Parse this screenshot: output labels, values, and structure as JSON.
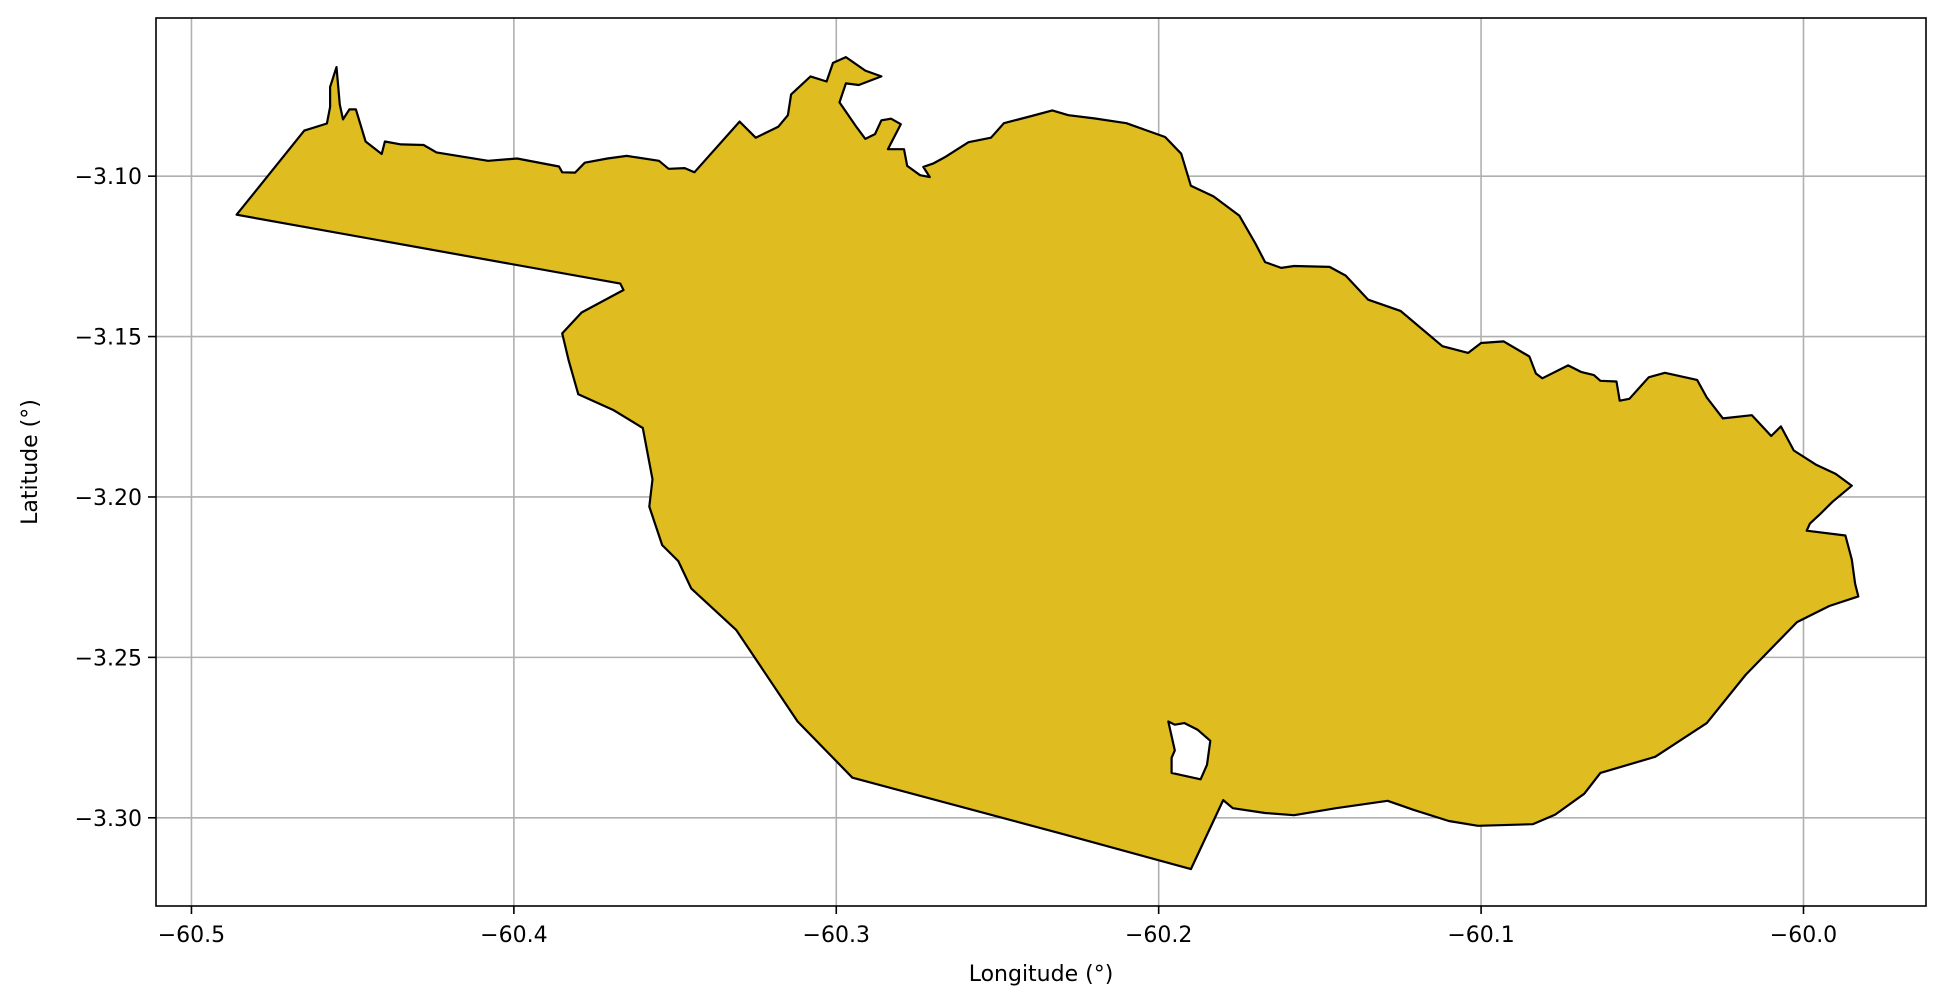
{
  "figure": {
    "xlabel": "Longitude (°)",
    "ylabel": "Latitude (°)"
  },
  "style": {
    "fill_color": "#dfbc20",
    "edge_color": "#000000",
    "grid_color": "#b0b0b0"
  },
  "map": {
    "x_range": [
      -60.511,
      -59.962
    ],
    "y_range": [
      -3.3275,
      -3.0507
    ],
    "grid": true,
    "x_ticks": [
      {
        "value": -60.5,
        "label": "−60.5"
      },
      {
        "value": -60.4,
        "label": "−60.4"
      },
      {
        "value": -60.3,
        "label": "−60.3"
      },
      {
        "value": -60.2,
        "label": "−60.2"
      },
      {
        "value": -60.1,
        "label": "−60.1"
      },
      {
        "value": -60.0,
        "label": "−60.0"
      }
    ],
    "y_ticks": [
      {
        "value": -3.1,
        "label": "−3.10"
      },
      {
        "value": -3.15,
        "label": "−3.15"
      },
      {
        "value": -3.2,
        "label": "−3.20"
      },
      {
        "value": -3.25,
        "label": "−3.25"
      },
      {
        "value": -3.3,
        "label": "−3.30"
      }
    ],
    "outline": [
      [
        -60.486,
        -3.112
      ],
      [
        -60.465,
        -3.0858
      ],
      [
        -60.458,
        -3.0836
      ],
      [
        -60.457,
        -3.0784
      ],
      [
        -60.457,
        -3.0722
      ],
      [
        -60.455,
        -3.066
      ],
      [
        -60.454,
        -3.0777
      ],
      [
        -60.453,
        -3.0823
      ],
      [
        -60.451,
        -3.0792
      ],
      [
        -60.449,
        -3.0792
      ],
      [
        -60.446,
        -3.0892
      ],
      [
        -60.441,
        -3.0931
      ],
      [
        -60.44,
        -3.0892
      ],
      [
        -60.435,
        -3.0901
      ],
      [
        -60.428,
        -3.0903
      ],
      [
        -60.424,
        -3.0926
      ],
      [
        -60.408,
        -3.0952
      ],
      [
        -60.399,
        -3.0945
      ],
      [
        -60.386,
        -3.097
      ],
      [
        -60.385,
        -3.0988
      ],
      [
        -60.381,
        -3.0989
      ],
      [
        -60.378,
        -3.0958
      ],
      [
        -60.371,
        -3.0945
      ],
      [
        -60.365,
        -3.0937
      ],
      [
        -60.355,
        -3.0952
      ],
      [
        -60.352,
        -3.0977
      ],
      [
        -60.347,
        -3.0975
      ],
      [
        -60.344,
        -3.0988
      ],
      [
        -60.33,
        -3.083
      ],
      [
        -60.325,
        -3.088
      ],
      [
        -60.318,
        -3.0846
      ],
      [
        -60.315,
        -3.081
      ],
      [
        -60.314,
        -3.0745
      ],
      [
        -60.308,
        -3.0689
      ],
      [
        -60.303,
        -3.0705
      ],
      [
        -60.301,
        -3.0647
      ],
      [
        -60.297,
        -3.0629
      ],
      [
        -60.291,
        -3.0671
      ],
      [
        -60.286,
        -3.0689
      ],
      [
        -60.293,
        -3.0716
      ],
      [
        -60.297,
        -3.0711
      ],
      [
        -60.299,
        -3.077
      ],
      [
        -60.294,
        -3.0843
      ],
      [
        -60.291,
        -3.0884
      ],
      [
        -60.288,
        -3.0869
      ],
      [
        -60.286,
        -3.0826
      ],
      [
        -60.283,
        -3.0821
      ],
      [
        -60.28,
        -3.0838
      ],
      [
        -60.284,
        -3.0916
      ],
      [
        -60.279,
        -3.0916
      ],
      [
        -60.278,
        -3.0968
      ],
      [
        -60.274,
        -3.0997
      ],
      [
        -60.271,
        -3.1003
      ],
      [
        -60.273,
        -3.0971
      ],
      [
        -60.27,
        -3.0961
      ],
      [
        -60.266,
        -3.0939
      ],
      [
        -60.259,
        -3.0894
      ],
      [
        -60.252,
        -3.088
      ],
      [
        -60.248,
        -3.0835
      ],
      [
        -60.24,
        -3.0814
      ],
      [
        -60.233,
        -3.0795
      ],
      [
        -60.228,
        -3.081
      ],
      [
        -60.22,
        -3.082
      ],
      [
        -60.21,
        -3.0835
      ],
      [
        -60.198,
        -3.0878
      ],
      [
        -60.193,
        -3.093
      ],
      [
        -60.19,
        -3.103
      ],
      [
        -60.183,
        -3.1063
      ],
      [
        -60.175,
        -3.1123
      ],
      [
        -60.17,
        -3.121
      ],
      [
        -60.167,
        -3.1268
      ],
      [
        -60.162,
        -3.1286
      ],
      [
        -60.158,
        -3.128
      ],
      [
        -60.147,
        -3.1283
      ],
      [
        -60.142,
        -3.131
      ],
      [
        -60.135,
        -3.1385
      ],
      [
        -60.125,
        -3.142
      ],
      [
        -60.112,
        -3.153
      ],
      [
        -60.104,
        -3.1551
      ],
      [
        -60.1,
        -3.152
      ],
      [
        -60.093,
        -3.1515
      ],
      [
        -60.085,
        -3.1562
      ],
      [
        -60.083,
        -3.1615
      ],
      [
        -60.081,
        -3.163
      ],
      [
        -60.073,
        -3.159
      ],
      [
        -60.069,
        -3.161
      ],
      [
        -60.065,
        -3.162
      ],
      [
        -60.063,
        -3.1638
      ],
      [
        -60.058,
        -3.164
      ],
      [
        -60.057,
        -3.17
      ],
      [
        -60.054,
        -3.1694
      ],
      [
        -60.048,
        -3.1627
      ],
      [
        -60.043,
        -3.1613
      ],
      [
        -60.033,
        -3.1635
      ],
      [
        -60.03,
        -3.169
      ],
      [
        -60.025,
        -3.1755
      ],
      [
        -60.016,
        -3.1745
      ],
      [
        -60.01,
        -3.181
      ],
      [
        -60.007,
        -3.178
      ],
      [
        -60.003,
        -3.1855
      ],
      [
        -59.996,
        -3.19
      ],
      [
        -59.99,
        -3.1928
      ],
      [
        -59.985,
        -3.1965
      ],
      [
        -59.991,
        -3.2015
      ],
      [
        -59.995,
        -3.2055
      ],
      [
        -59.998,
        -3.2083
      ],
      [
        -59.999,
        -3.2105
      ],
      [
        -59.987,
        -3.212
      ],
      [
        -59.985,
        -3.2195
      ],
      [
        -59.984,
        -3.227
      ],
      [
        -59.983,
        -3.231
      ],
      [
        -59.992,
        -3.234
      ],
      [
        -60.002,
        -3.239
      ],
      [
        -60.018,
        -3.2555
      ],
      [
        -60.03,
        -3.2705
      ],
      [
        -60.046,
        -3.281
      ],
      [
        -60.063,
        -3.286
      ],
      [
        -60.068,
        -3.2925
      ],
      [
        -60.077,
        -3.299
      ],
      [
        -60.084,
        -3.302
      ],
      [
        -60.101,
        -3.3025
      ],
      [
        -60.11,
        -3.301
      ],
      [
        -60.121,
        -3.2975
      ],
      [
        -60.129,
        -3.2947
      ],
      [
        -60.145,
        -3.297
      ],
      [
        -60.158,
        -3.2992
      ],
      [
        -60.167,
        -3.2985
      ],
      [
        -60.177,
        -3.297
      ],
      [
        -60.18,
        -3.2945
      ],
      [
        -60.19,
        -3.316
      ],
      [
        -60.23,
        -3.305
      ],
      [
        -60.295,
        -3.2875
      ],
      [
        -60.312,
        -3.27
      ],
      [
        -60.331,
        -3.2415
      ],
      [
        -60.345,
        -3.2285
      ],
      [
        -60.349,
        -3.22
      ],
      [
        -60.354,
        -3.215
      ],
      [
        -60.358,
        -3.203
      ],
      [
        -60.357,
        -3.1945
      ],
      [
        -60.36,
        -3.1785
      ],
      [
        -60.369,
        -3.173
      ],
      [
        -60.38,
        -3.168
      ],
      [
        -60.383,
        -3.1575
      ],
      [
        -60.385,
        -3.149
      ],
      [
        -60.379,
        -3.1425
      ],
      [
        -60.366,
        -3.1355
      ],
      [
        -60.367,
        -3.1335
      ],
      [
        -60.486,
        -3.112
      ]
    ],
    "holes": [
      [
        [
          -60.197,
          -3.27
        ],
        [
          -60.195,
          -3.271
        ],
        [
          -60.192,
          -3.2705
        ],
        [
          -60.188,
          -3.2725
        ],
        [
          -60.184,
          -3.276
        ],
        [
          -60.185,
          -3.2835
        ],
        [
          -60.187,
          -3.288
        ],
        [
          -60.196,
          -3.286
        ],
        [
          -60.196,
          -3.2813
        ],
        [
          -60.195,
          -3.279
        ],
        [
          -60.197,
          -3.27
        ]
      ]
    ]
  }
}
